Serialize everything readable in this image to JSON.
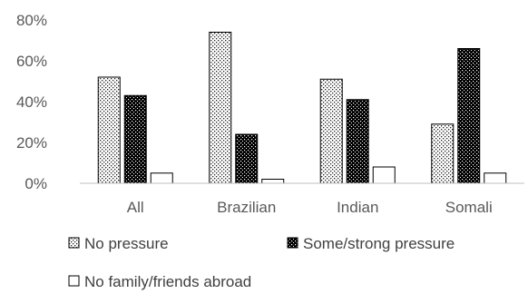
{
  "chart_data": {
    "type": "bar",
    "title": "",
    "xlabel": "",
    "ylabel": "",
    "categories": [
      "All",
      "Brazilian",
      "Indian",
      "Somali"
    ],
    "ylim": [
      0,
      80
    ],
    "yticks": [
      "0%",
      "20%",
      "40%",
      "60%",
      "80%"
    ],
    "grid": false,
    "legend_position": "bottom",
    "series": [
      {
        "name": "No pressure",
        "values": [
          52,
          74,
          51,
          29
        ],
        "fill": "dotted-light",
        "color": "#ffffff"
      },
      {
        "name": "Some/strong pressure",
        "values": [
          43,
          24,
          41,
          66
        ],
        "fill": "dotted-dark",
        "color": "#000000"
      },
      {
        "name": "No family/friends abroad",
        "values": [
          5,
          2,
          8,
          5
        ],
        "fill": "solid-white",
        "color": "#ffffff"
      }
    ]
  }
}
